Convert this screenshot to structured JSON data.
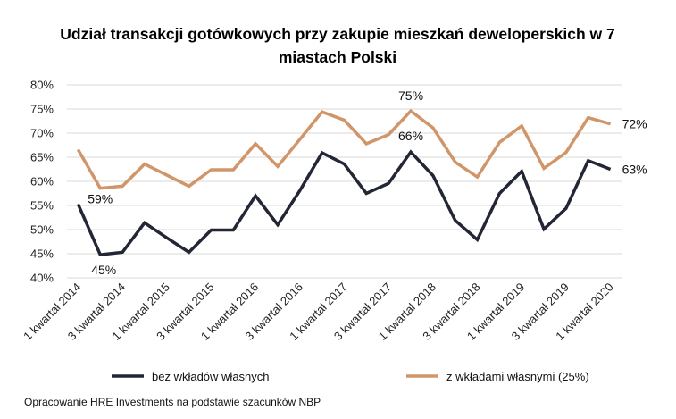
{
  "chart_data": {
    "type": "line",
    "title": "Udział transakcji gotówkowych przy zakupie mieszkań deweloperskich w 7 miastach Polski",
    "title_lines": [
      "Udział transakcji gotówkowych przy zakupie mieszkań deweloperskich w 7",
      "miastach Polski"
    ],
    "x_tick_labels": [
      "1 kwartał 2014",
      "3 kwartał 2014",
      "1 kwartał 2015",
      "3 kwartał 2015",
      "1 kwartał 2016",
      "3 kwartał 2016",
      "1 kwartał 2017",
      "3 kwartał 2017",
      "1 kwartał 2018",
      "3 kwartał 2018",
      "1 kwartał 2019",
      "3 kwartał 2019",
      "1 kwartał 2020"
    ],
    "x_tick_every": 2,
    "y_tick_labels": [
      "40%",
      "45%",
      "50%",
      "55%",
      "60%",
      "65%",
      "70%",
      "75%",
      "80%"
    ],
    "ylim": [
      40,
      80
    ],
    "y_unit": "%",
    "grid": true,
    "legend_position": "bottom",
    "series": [
      {
        "name": "bez wkładów własnych",
        "color": "#232735",
        "values": [
          55.3,
          44.8,
          45.3,
          51.4,
          48.3,
          45.3,
          49.9,
          49.9,
          57.0,
          51.0,
          58.1,
          65.9,
          63.6,
          57.5,
          59.6,
          66.1,
          61.2,
          51.9,
          47.9,
          57.5,
          62.1,
          50.1,
          54.4,
          64.3,
          62.5
        ],
        "data_labels": [
          {
            "index": 1,
            "text": "45%"
          },
          {
            "index": 15,
            "text": "66%"
          },
          {
            "index": 24,
            "text": "63%"
          }
        ]
      },
      {
        "name": "z wkładami własnymi (25%)",
        "color": "#D1956A",
        "values": [
          66.6,
          58.6,
          59.0,
          63.6,
          61.3,
          59.0,
          62.4,
          62.4,
          67.8,
          63.1,
          68.7,
          74.4,
          72.7,
          67.8,
          69.7,
          74.6,
          71.1,
          64.0,
          60.9,
          68.1,
          71.5,
          62.7,
          66.0,
          73.2,
          71.9
        ],
        "data_labels": [
          {
            "index": 1,
            "text": "59%"
          },
          {
            "index": 15,
            "text": "75%"
          },
          {
            "index": 24,
            "text": "72%"
          }
        ]
      }
    ],
    "gridline_color": "#D9D9D9"
  },
  "source": "Opracowanie HRE Investments na podstawie szacunków NBP"
}
